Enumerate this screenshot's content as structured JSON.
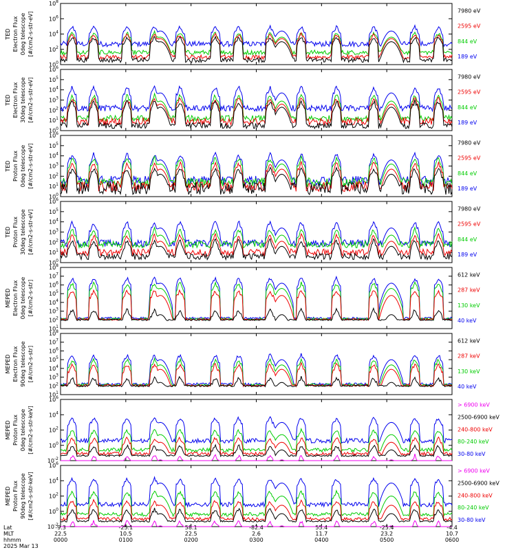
{
  "chart_data": {
    "type": "line",
    "date_label": "2025 Mar 13",
    "row_labels": [
      "Lat",
      "MLT",
      "hhmm"
    ],
    "time_axis": [
      {
        "lat": "-9.3",
        "mlt": "22.5",
        "hhmm": "0000"
      },
      {
        "lat": "-25.1",
        "mlt": "10.5",
        "hhmm": "0100"
      },
      {
        "lat": "58.1",
        "mlt": "22.5",
        "hhmm": "0200"
      },
      {
        "lat": "-82.4",
        "mlt": "2.6",
        "hhmm": "0300"
      },
      {
        "lat": "55.4",
        "mlt": "11.7",
        "hhmm": "0400"
      },
      {
        "lat": "-25.4",
        "mlt": "23.2",
        "hhmm": "0500"
      },
      {
        "lat": "-4.4",
        "mlt": "10.7",
        "hhmm": "0600"
      }
    ],
    "panels": [
      {
        "ylabel": [
          "TED",
          "Electron Flux",
          "0deg telescope",
          "[#/cm2-s-str-eV]"
        ],
        "ylim_exp": [
          0,
          8
        ],
        "yticks_exp": [
          0,
          2,
          4,
          6,
          8
        ],
        "legend": [
          {
            "text": "7980 eV",
            "color": "#000000"
          },
          {
            "text": "2595 eV",
            "color": "#ee0000"
          },
          {
            "text": "844 eV",
            "color": "#00cc00"
          },
          {
            "text": "189 eV",
            "color": "#0000ee"
          }
        ],
        "series": [
          {
            "name": "189 eV",
            "color": "#0000ee",
            "base": 2.7,
            "noise": 0.35,
            "peak": 5.0
          },
          {
            "name": "844 eV",
            "color": "#00cc00",
            "base": 1.6,
            "noise": 0.3,
            "peak": 4.2
          },
          {
            "name": "2595 eV",
            "color": "#ee0000",
            "base": 1.0,
            "noise": 0.3,
            "peak": 4.0
          },
          {
            "name": "7980 eV",
            "color": "#000000",
            "base": 0.6,
            "noise": 0.3,
            "peak": 3.6
          }
        ]
      },
      {
        "ylabel": [
          "TED",
          "Electron Flux",
          "30deg telescope",
          "[#/cm2-s-str-eV]"
        ],
        "ylim_exp": [
          0,
          6
        ],
        "yticks_exp": [
          0,
          1,
          2,
          3,
          4,
          5,
          6
        ],
        "legend": [
          {
            "text": "7980 eV",
            "color": "#000000"
          },
          {
            "text": "2595 eV",
            "color": "#ee0000"
          },
          {
            "text": "844 eV",
            "color": "#00cc00"
          },
          {
            "text": "189 eV",
            "color": "#0000ee"
          }
        ],
        "series": [
          {
            "name": "189 eV",
            "color": "#0000ee",
            "base": 2.2,
            "noise": 0.3,
            "peak": 4.3
          },
          {
            "name": "844 eV",
            "color": "#00cc00",
            "base": 1.2,
            "noise": 0.3,
            "peak": 3.5
          },
          {
            "name": "2595 eV",
            "color": "#ee0000",
            "base": 0.9,
            "noise": 0.35,
            "peak": 3.2
          },
          {
            "name": "7980 eV",
            "color": "#000000",
            "base": 0.5,
            "noise": 0.3,
            "peak": 2.9
          }
        ]
      },
      {
        "ylabel": [
          "TED",
          "Proton Flux",
          "0deg telescope",
          "[#/cm2-s-str-eV]"
        ],
        "ylim_exp": [
          0,
          6
        ],
        "yticks_exp": [
          0,
          1,
          2,
          3,
          4,
          5,
          6
        ],
        "legend": [
          {
            "text": "7980 eV",
            "color": "#000000"
          },
          {
            "text": "2595 eV",
            "color": "#ee0000"
          },
          {
            "text": "844 eV",
            "color": "#00cc00"
          },
          {
            "text": "189 eV",
            "color": "#0000ee"
          }
        ],
        "series": [
          {
            "name": "189 eV",
            "color": "#0000ee",
            "base": 1.6,
            "noise": 0.45,
            "peak": 4.2
          },
          {
            "name": "844 eV",
            "color": "#00cc00",
            "base": 1.4,
            "noise": 0.45,
            "peak": 3.8
          },
          {
            "name": "2595 eV",
            "color": "#ee0000",
            "base": 1.0,
            "noise": 0.5,
            "peak": 3.3
          },
          {
            "name": "7980 eV",
            "color": "#000000",
            "base": 0.8,
            "noise": 0.6,
            "peak": 2.8
          }
        ]
      },
      {
        "ylabel": [
          "TED",
          "Proton Flux",
          "30deg telescope",
          "[#/cm2-s-str-eV]"
        ],
        "ylim_exp": [
          0,
          6
        ],
        "yticks_exp": [
          0,
          1,
          2,
          3,
          4,
          5,
          6
        ],
        "legend": [
          {
            "text": "7980 eV",
            "color": "#000000"
          },
          {
            "text": "2595 eV",
            "color": "#ee0000"
          },
          {
            "text": "844 eV",
            "color": "#00cc00"
          },
          {
            "text": "189 eV",
            "color": "#0000ee"
          }
        ],
        "series": [
          {
            "name": "189 eV",
            "color": "#0000ee",
            "base": 1.9,
            "noise": 0.35,
            "peak": 4.0
          },
          {
            "name": "844 eV",
            "color": "#00cc00",
            "base": 1.8,
            "noise": 0.35,
            "peak": 3.3
          },
          {
            "name": "2595 eV",
            "color": "#ee0000",
            "base": 1.0,
            "noise": 0.35,
            "peak": 2.7
          },
          {
            "name": "7980 eV",
            "color": "#000000",
            "base": 0.6,
            "noise": 0.3,
            "peak": 2.2
          }
        ]
      },
      {
        "ylabel": [
          "MEPED",
          "Electron Flux",
          "0deg telescope",
          "[#/cm2-s-str]"
        ],
        "ylim_exp": [
          1,
          8
        ],
        "yticks_exp": [
          1,
          2,
          3,
          4,
          5,
          6,
          7,
          8
        ],
        "legend": [
          {
            "text": "612 keV",
            "color": "#000000"
          },
          {
            "text": "287 keV",
            "color": "#ee0000"
          },
          {
            "text": "130 keV",
            "color": "#00cc00"
          },
          {
            "text": "40 keV",
            "color": "#0000ee"
          }
        ],
        "series": [
          {
            "name": "40 keV",
            "color": "#0000ee",
            "base": 2.2,
            "noise": 0.12,
            "peak": 6.8
          },
          {
            "name": "130 keV",
            "color": "#00cc00",
            "base": 2.1,
            "noise": 0.12,
            "peak": 6.2
          },
          {
            "name": "287 keV",
            "color": "#ee0000",
            "base": 2.05,
            "noise": 0.1,
            "peak": 5.4
          },
          {
            "name": "612 keV",
            "color": "#000000",
            "base": 2.0,
            "noise": 0.08,
            "peak": 3.2
          }
        ]
      },
      {
        "ylabel": [
          "MEPED",
          "Electron Flux",
          "90deg telescope",
          "[#/cm2-s-str]"
        ],
        "ylim_exp": [
          1,
          8
        ],
        "yticks_exp": [
          1,
          2,
          3,
          4,
          5,
          6,
          7,
          8
        ],
        "legend": [
          {
            "text": "612 keV",
            "color": "#000000"
          },
          {
            "text": "287 keV",
            "color": "#ee0000"
          },
          {
            "text": "130 keV",
            "color": "#00cc00"
          },
          {
            "text": "40 keV",
            "color": "#0000ee"
          }
        ],
        "series": [
          {
            "name": "40 keV",
            "color": "#0000ee",
            "base": 2.2,
            "noise": 0.15,
            "peak": 5.6
          },
          {
            "name": "130 keV",
            "color": "#00cc00",
            "base": 2.1,
            "noise": 0.15,
            "peak": 5.0
          },
          {
            "name": "287 keV",
            "color": "#ee0000",
            "base": 2.05,
            "noise": 0.12,
            "peak": 4.5
          },
          {
            "name": "612 keV",
            "color": "#000000",
            "base": 2.0,
            "noise": 0.1,
            "peak": 3.0
          }
        ]
      },
      {
        "ylabel": [
          "MEPED",
          "Proton Flux",
          "0deg telescope",
          "[#/cm2-s-str-keV]"
        ],
        "ylim_exp": [
          -2,
          6
        ],
        "yticks_exp": [
          -2,
          0,
          2,
          4,
          6
        ],
        "legend": [
          {
            "text": "> 6900 keV",
            "color": "#ee00ee"
          },
          {
            "text": "2500-6900 keV",
            "color": "#000000"
          },
          {
            "text": "240-800 keV",
            "color": "#ee0000"
          },
          {
            "text": "80-240 keV",
            "color": "#00cc00"
          },
          {
            "text": "30-80 keV",
            "color": "#0000ee"
          }
        ],
        "series": [
          {
            "name": "30-80 keV",
            "color": "#0000ee",
            "base": 0.6,
            "noise": 0.3,
            "peak": 3.6
          },
          {
            "name": "80-240 keV",
            "color": "#00cc00",
            "base": -0.6,
            "noise": 0.25,
            "peak": 2.0
          },
          {
            "name": "240-800 keV",
            "color": "#ee0000",
            "base": -1.1,
            "noise": 0.2,
            "peak": 1.0
          },
          {
            "name": "2500-6900 keV",
            "color": "#000000",
            "base": -1.35,
            "noise": 0.1,
            "peak": 0.0
          },
          {
            "name": "> 6900 keV",
            "color": "#ee00ee",
            "base": -2.3,
            "noise": 0.05,
            "peak": -1.3
          }
        ]
      },
      {
        "ylabel": [
          "MEPED",
          "Proton Flux",
          "90deg telescope",
          "[#/cm2-s-str-keV]"
        ],
        "ylim_exp": [
          -2,
          6
        ],
        "yticks_exp": [
          -2,
          0,
          2,
          4,
          6
        ],
        "legend": [
          {
            "text": "> 6900 keV",
            "color": "#ee00ee"
          },
          {
            "text": "2500-6900 keV",
            "color": "#000000"
          },
          {
            "text": "240-800 keV",
            "color": "#ee0000"
          },
          {
            "text": "80-240 keV",
            "color": "#00cc00"
          },
          {
            "text": "30-80 keV",
            "color": "#0000ee"
          }
        ],
        "series": [
          {
            "name": "30-80 keV",
            "color": "#0000ee",
            "base": 0.9,
            "noise": 0.3,
            "peak": 4.3
          },
          {
            "name": "80-240 keV",
            "color": "#00cc00",
            "base": -0.4,
            "noise": 0.25,
            "peak": 2.6
          },
          {
            "name": "240-800 keV",
            "color": "#ee0000",
            "base": -1.0,
            "noise": 0.2,
            "peak": 1.4
          },
          {
            "name": "2500-6900 keV",
            "color": "#000000",
            "base": -1.3,
            "noise": 0.1,
            "peak": 0.3
          },
          {
            "name": "> 6900 keV",
            "color": "#ee00ee",
            "base": -2.3,
            "noise": 0.05,
            "peak": -1.3
          }
        ]
      }
    ]
  }
}
